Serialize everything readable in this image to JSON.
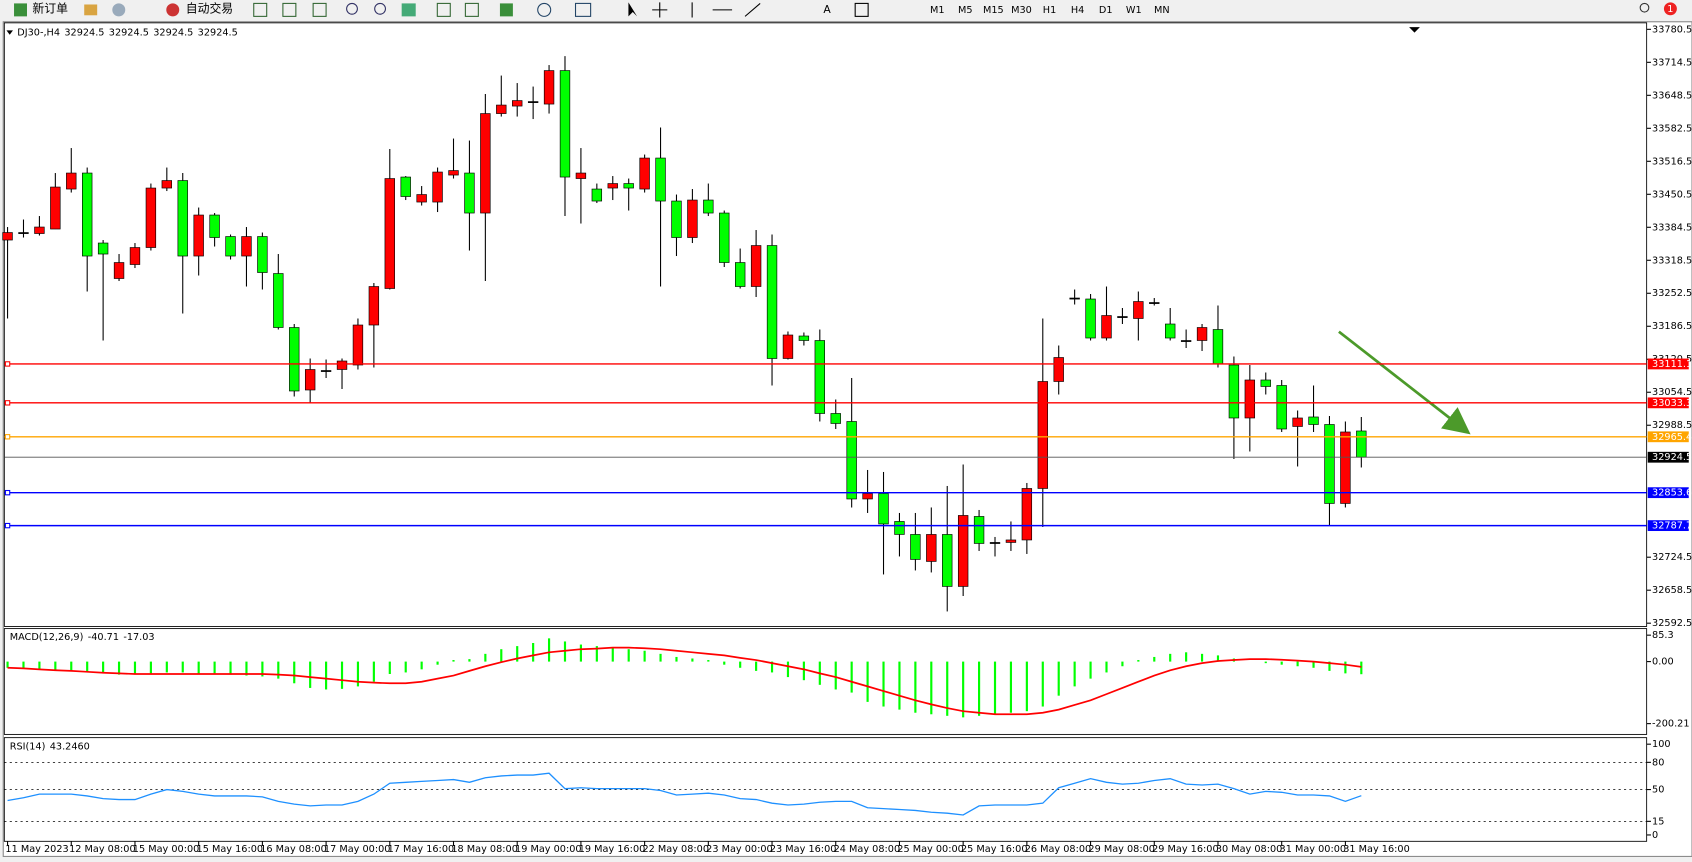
{
  "toolbar": {
    "new_order": "新订单",
    "auto_trading": "自动交易",
    "timeframes": [
      "M1",
      "M5",
      "M15",
      "M30",
      "H1",
      "H4",
      "D1",
      "W1",
      "MN"
    ],
    "notifications": 1
  },
  "chart_data": [
    {
      "type": "candlestick",
      "title": "DJ30-,H4",
      "quote": [
        32924.5,
        32924.5,
        32924.5,
        32924.5
      ],
      "categories": [
        "11 May 2023",
        null,
        null,
        null,
        "12 May 08:00",
        null,
        null,
        null,
        "15 May 00:00",
        null,
        null,
        null,
        "15 May 16:00",
        null,
        null,
        null,
        "16 May 08:00",
        null,
        null,
        null,
        "17 May 00:00",
        null,
        null,
        null,
        "17 May 16:00",
        null,
        null,
        null,
        "18 May 08:00",
        null,
        null,
        null,
        "19 May 00:00",
        null,
        null,
        null,
        "19 May 16:00",
        null,
        null,
        null,
        "22 May 08:00",
        null,
        null,
        null,
        "23 May 00:00",
        null,
        null,
        null,
        "23 May 16:00",
        null,
        null,
        null,
        "24 May 08:00",
        null,
        null,
        null,
        "25 May 00:00",
        null,
        null,
        null,
        "25 May 16:00",
        null,
        null,
        null,
        "26 May 08:00",
        null,
        null,
        null,
        "29 May 08:00",
        null,
        null,
        null,
        "29 May 16:00",
        null,
        null,
        null,
        "30 May 08:00",
        null,
        null,
        null,
        "31 May 00:00",
        null,
        null,
        null,
        "31 May 16:00",
        null
      ],
      "open": [
        33359,
        33374,
        33372,
        33381,
        33461,
        33493,
        33353,
        33282,
        33310,
        33344,
        33463,
        33478,
        33327,
        33409,
        33366,
        33327,
        33366,
        33292,
        33184,
        33059,
        33098,
        33100,
        33109,
        33189,
        33262,
        33485,
        33435,
        33435,
        33489,
        33493,
        33413,
        33612,
        33627,
        33636,
        33631,
        33698,
        33482,
        33461,
        33463,
        33472,
        33461,
        33523,
        33437,
        33364,
        33439,
        33413,
        33314,
        33266,
        33348,
        33122,
        33167,
        33158,
        33012,
        32996,
        32841,
        32852,
        32796,
        32770,
        32716,
        32770,
        32666,
        32806,
        32754,
        32754,
        32759,
        32862,
        33076,
        33243,
        33241,
        33163,
        33206,
        33202,
        33234,
        33191,
        33158,
        33158,
        33180,
        33109,
        33003,
        33079,
        33068,
        32986,
        33005,
        32990,
        32832,
        32977
      ],
      "high": [
        33385,
        33400,
        33407,
        33493,
        33543,
        33504,
        33359,
        33331,
        33353,
        33472,
        33504,
        33493,
        33424,
        33413,
        33370,
        33385,
        33374,
        33331,
        33191,
        33122,
        33120,
        33122,
        33202,
        33273,
        33541,
        33487,
        33467,
        33504,
        33562,
        33558,
        33651,
        33688,
        33673,
        33666,
        33709,
        33727,
        33543,
        33472,
        33487,
        33482,
        33530,
        33584,
        33450,
        33461,
        33472,
        33418,
        33342,
        33379,
        33370,
        33176,
        33174,
        33180,
        33040,
        33083,
        32899,
        32895,
        32813,
        32813,
        32824,
        32867,
        32910,
        32819,
        32765,
        32796,
        32873,
        33202,
        33148,
        33260,
        33251,
        33266,
        33223,
        33256,
        33243,
        33223,
        33180,
        33191,
        33228,
        33126,
        33109,
        33094,
        33079,
        33018,
        33068,
        33007,
        32996,
        33005
      ],
      "low": [
        33202,
        33364,
        33368,
        33381,
        33454,
        33256,
        33158,
        33277,
        33303,
        33338,
        33457,
        33212,
        33288,
        33346,
        33320,
        33266,
        33260,
        33180,
        33046,
        33033,
        33083,
        33061,
        33100,
        33104,
        33260,
        33439,
        33428,
        33415,
        33482,
        33338,
        33277,
        33606,
        33606,
        33601,
        33612,
        33407,
        33392,
        33433,
        33439,
        33418,
        33454,
        33266,
        33327,
        33353,
        33407,
        33305,
        33262,
        33245,
        33068,
        33120,
        33148,
        32996,
        32981,
        32824,
        32813,
        32690,
        32726,
        32698,
        32694,
        32616,
        32647,
        32737,
        32726,
        32737,
        32731,
        32785,
        33050,
        33230,
        33158,
        33158,
        33191,
        33158,
        33228,
        33158,
        33143,
        33137,
        33104,
        32921,
        32936,
        33050,
        32975,
        32906,
        32975,
        32787,
        32824,
        32904
      ],
      "close": [
        33374,
        33374,
        33385,
        33465,
        33493,
        33327,
        33331,
        33314,
        33344,
        33463,
        33478,
        33327,
        33409,
        33364,
        33327,
        33366,
        33294,
        33184,
        33057,
        33100,
        33098,
        33117,
        33189,
        33266,
        33482,
        33446,
        33450,
        33495,
        33498,
        33413,
        33612,
        33629,
        33638,
        33636,
        33698,
        33485,
        33493,
        33437,
        33472,
        33463,
        33523,
        33437,
        33364,
        33439,
        33413,
        33314,
        33266,
        33348,
        33122,
        33169,
        33158,
        33012,
        32992,
        32841,
        32852,
        32791,
        32770,
        32720,
        32770,
        32666,
        32808,
        32752,
        32754,
        32759,
        32862,
        33076,
        33124,
        33243,
        33163,
        33208,
        33206,
        33236,
        33234,
        33163,
        33158,
        33184,
        33111,
        33003,
        33079,
        33066,
        32981,
        33003,
        32990,
        32832,
        32975,
        32924.5
      ],
      "up_color": "#ff0000",
      "down_color": "#00ff00",
      "ylim": [
        32586,
        33791.3
      ],
      "yticks": [
        33780.5,
        33714.5,
        33648.5,
        33582.5,
        33516.5,
        33450.5,
        33384.5,
        33318.5,
        33252.5,
        33186.5,
        33120.5,
        33054.5,
        32988.5,
        32724.5,
        32658.5,
        32592.5
      ],
      "hlines": [
        {
          "value": 33111.1,
          "color": "#ff0000"
        },
        {
          "value": 33033.3,
          "color": "#ff0000"
        },
        {
          "value": 32965.4,
          "color": "#ffa500"
        },
        {
          "value": 32853.6,
          "color": "#0000ff"
        },
        {
          "value": 32787.7,
          "color": "#0000ff"
        }
      ],
      "current_price": 32924.5,
      "current_color": "#000000"
    },
    {
      "type": "macd",
      "title": "MACD(12,26,9)",
      "histogram": [
        -20,
        -22,
        -25,
        -28,
        -30,
        -35,
        -38,
        -42,
        -40,
        -38,
        -35,
        -35,
        -40,
        -38,
        -42,
        -45,
        -48,
        -55,
        -70,
        -85,
        -90,
        -88,
        -80,
        -65,
        -40,
        -35,
        -25,
        -10,
        5,
        8,
        25,
        40,
        50,
        60,
        75,
        65,
        55,
        50,
        45,
        40,
        35,
        25,
        15,
        10,
        5,
        -10,
        -20,
        -30,
        -35,
        -50,
        -60,
        -75,
        -90,
        -100,
        -130,
        -145,
        -155,
        -165,
        -170,
        -175,
        -180,
        -175,
        -170,
        -165,
        -160,
        -145,
        -110,
        -80,
        -55,
        -35,
        -15,
        5,
        15,
        25,
        30,
        25,
        20,
        10,
        0,
        -5,
        -10,
        -15,
        -20,
        -30,
        -38,
        -40.71
      ],
      "signal": [
        -20,
        -22,
        -25,
        -28,
        -30,
        -33,
        -36,
        -38,
        -40,
        -40,
        -40,
        -40,
        -40,
        -40,
        -40,
        -40,
        -40,
        -42,
        -45,
        -50,
        -55,
        -60,
        -65,
        -68,
        -70,
        -70,
        -65,
        -55,
        -45,
        -30,
        -15,
        -2,
        10,
        20,
        30,
        35,
        40,
        42,
        45,
        45,
        43,
        40,
        35,
        30,
        25,
        20,
        12,
        5,
        -5,
        -15,
        -25,
        -38,
        -50,
        -65,
        -80,
        -95,
        -110,
        -125,
        -138,
        -150,
        -160,
        -165,
        -170,
        -170,
        -170,
        -165,
        -155,
        -140,
        -125,
        -105,
        -85,
        -65,
        -45,
        -28,
        -15,
        -5,
        2,
        5,
        8,
        8,
        6,
        3,
        0,
        -5,
        -10,
        -17.03
      ],
      "histogram_color": "#00ff00",
      "signal_color": "#ff0000",
      "ylim": [
        -235,
        103
      ],
      "yticks": [
        85.3,
        {
          "value": 0,
          "label": "0.00"
        },
        -200.21
      ]
    },
    {
      "type": "line",
      "title": "RSI(14)",
      "current_label": "43.2460",
      "values": [
        38,
        41,
        45,
        45,
        45,
        43,
        40,
        39,
        39,
        45,
        50,
        48,
        45,
        43,
        43,
        43,
        42,
        37,
        34,
        32,
        33,
        33,
        37,
        45,
        57,
        58,
        59,
        60,
        61,
        58,
        63,
        65,
        66,
        66,
        68,
        51,
        52,
        51,
        51,
        51,
        51,
        49,
        44,
        45,
        46,
        44,
        40,
        39,
        35,
        33,
        34,
        36,
        37,
        37,
        30,
        29,
        28,
        27,
        25,
        24,
        22,
        32,
        33,
        33,
        33,
        35,
        52,
        57,
        62,
        58,
        56,
        57,
        60,
        62,
        56,
        55,
        56,
        51,
        45,
        48,
        47,
        44,
        44,
        43,
        37,
        43.246
      ],
      "color": "#1e90ff",
      "ylim": [
        -7,
        106
      ],
      "yticks": [
        100,
        80,
        50,
        15,
        0
      ],
      "levels": [
        80,
        50,
        15
      ]
    }
  ]
}
